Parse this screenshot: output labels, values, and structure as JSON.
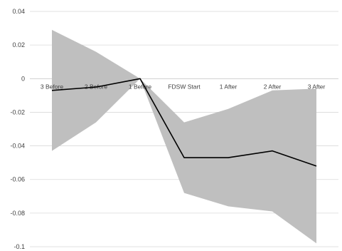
{
  "chart_data": {
    "type": "line",
    "title": "",
    "xlabel": "",
    "ylabel": "",
    "categories": [
      "3 Before",
      "2 Before",
      "1 Before",
      "FDSW Start",
      "1 After",
      "2 After",
      "3 After"
    ],
    "series": [
      {
        "values": [
          -0.007,
          -0.005,
          0.0,
          -0.047,
          -0.047,
          -0.043,
          -0.052
        ]
      }
    ],
    "band": {
      "upper": [
        0.029,
        0.016,
        0.0,
        -0.026,
        -0.018,
        -0.007,
        -0.006
      ],
      "lower": [
        -0.043,
        -0.026,
        0.0,
        -0.068,
        -0.076,
        -0.079,
        -0.098
      ]
    },
    "ylim": [
      -0.1,
      0.04
    ],
    "yticks": [
      0.04,
      0.02,
      0,
      -0.02,
      -0.04,
      -0.06,
      -0.08,
      -0.1
    ],
    "ytick_labels": [
      "0.04",
      "0.02",
      "0",
      "-0.02",
      "-0.04",
      "-0.06",
      "-0.08",
      "-0.1"
    ],
    "grid": true,
    "legend": "none",
    "colors": {
      "line": "#000000",
      "band": "#bfbfbf",
      "grid": "#d9d9d9",
      "axis": "#bfbfbf"
    }
  }
}
